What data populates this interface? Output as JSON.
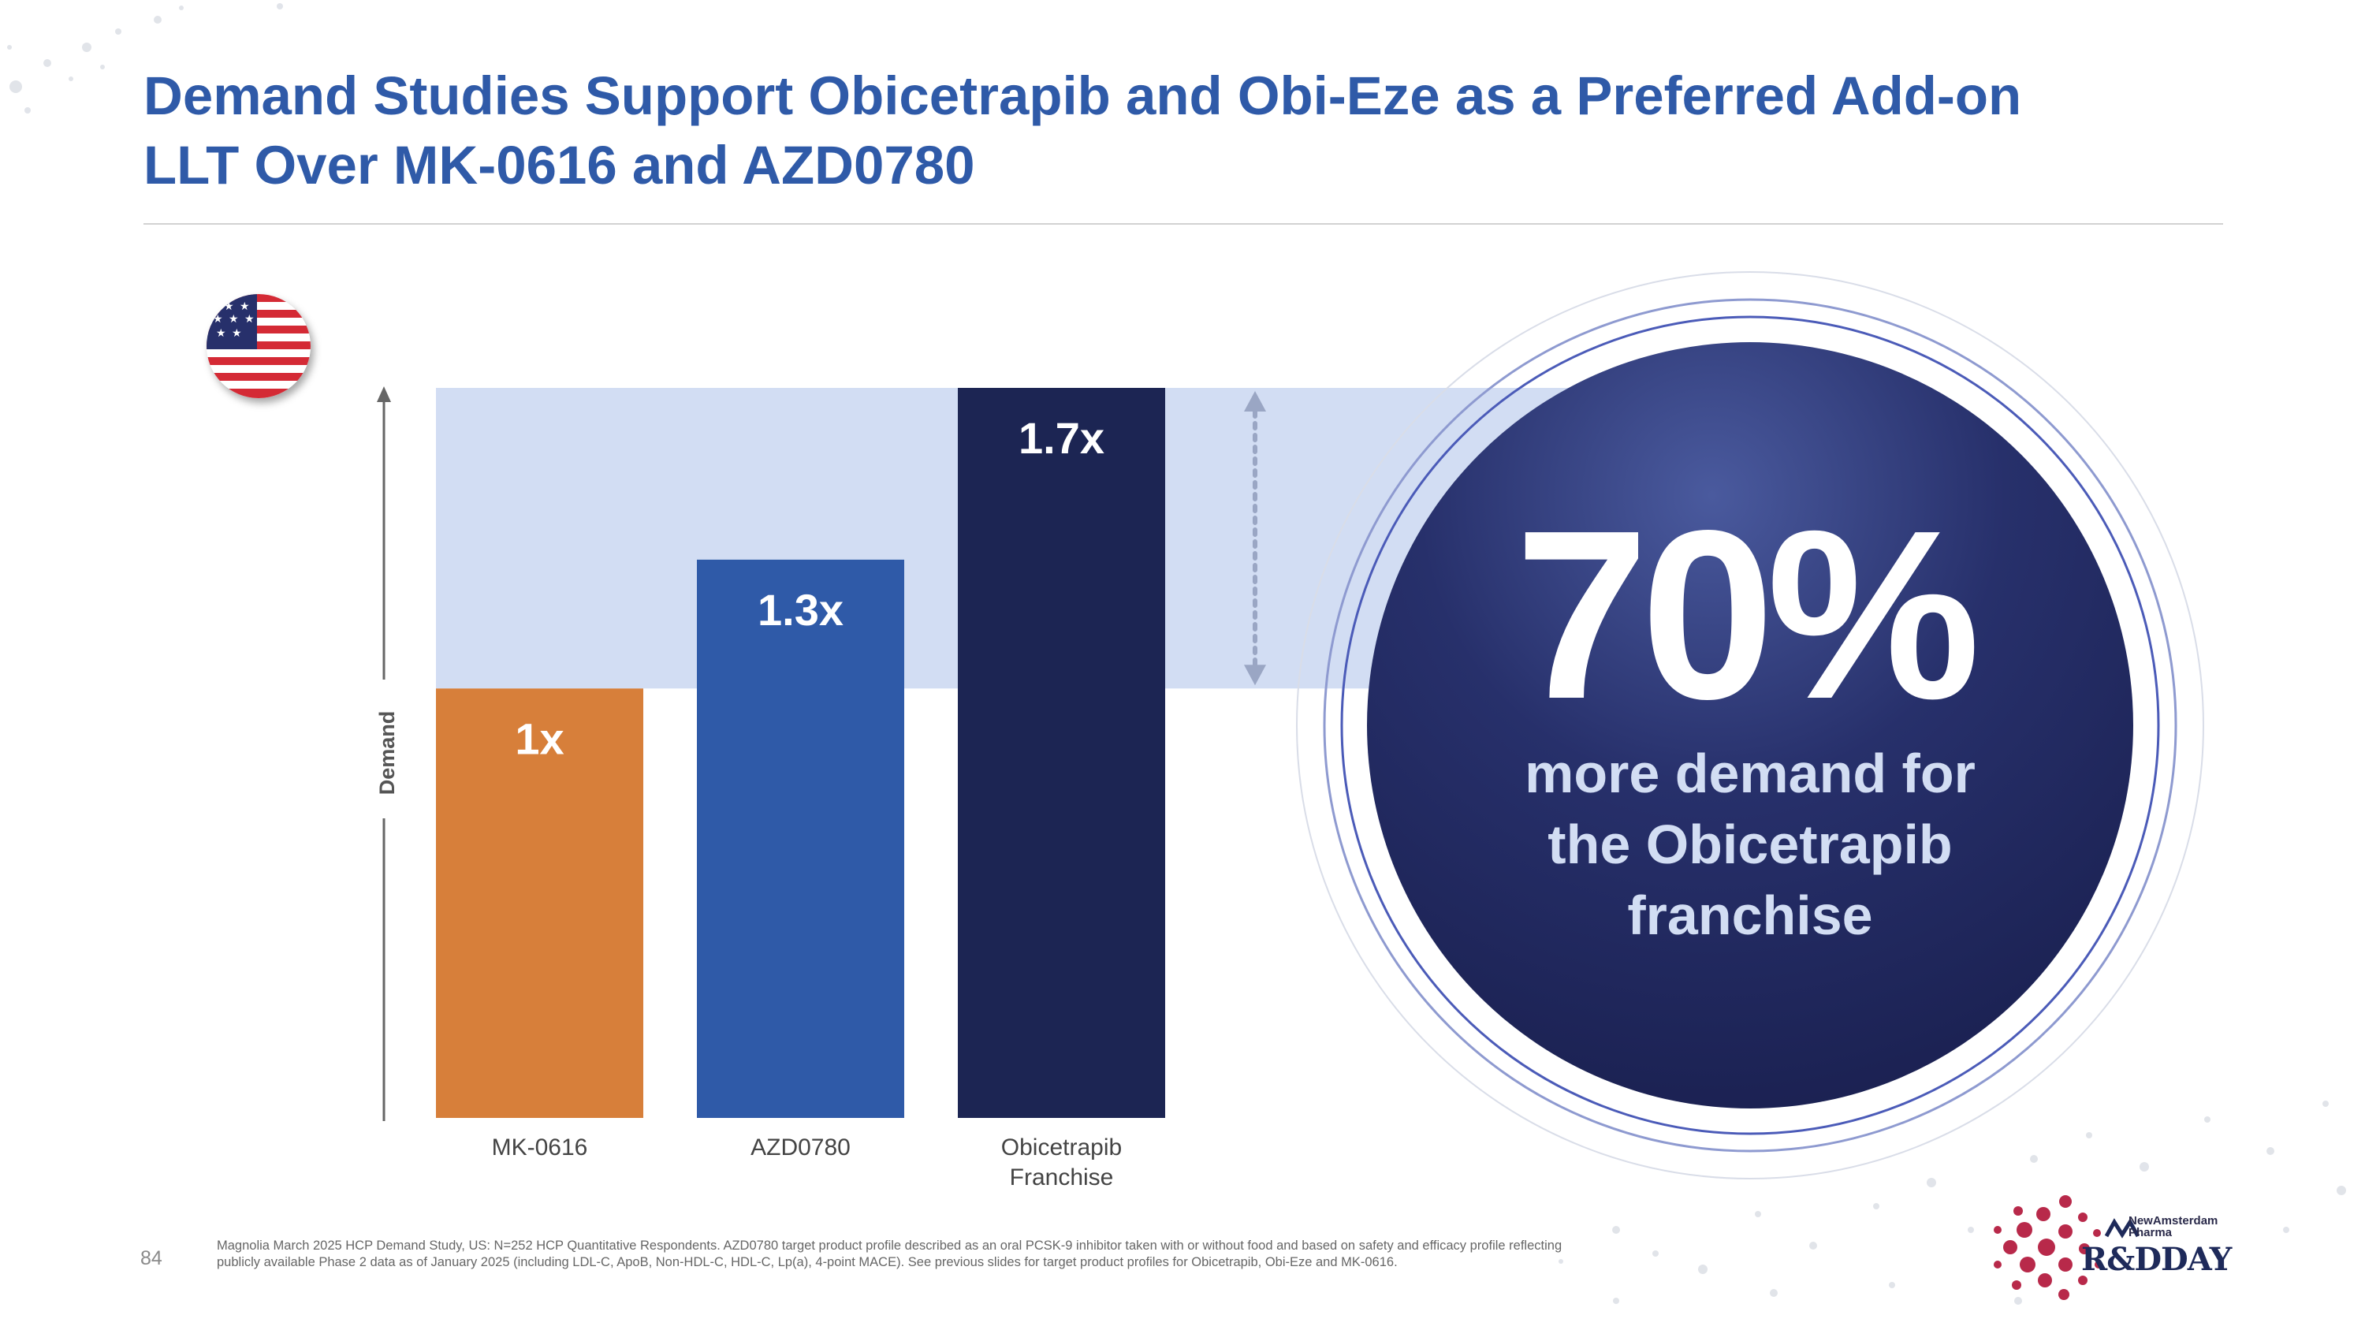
{
  "title": {
    "line1": "Demand Studies Support Obicetrapib and Obi-Eze as a Preferred Add-on",
    "line2": "LLT Over MK-0616 and AZD0780"
  },
  "flag": {
    "country": "US",
    "icon": "us-flag-icon"
  },
  "chart_data": {
    "type": "bar",
    "title": "",
    "xlabel": "",
    "ylabel": "Demand",
    "categories": [
      "MK-0616",
      "AZD0780",
      "Obicetrapib Franchise"
    ],
    "category_lines": [
      [
        "MK-0616"
      ],
      [
        "AZD0780"
      ],
      [
        "Obicetrapib",
        "Franchise"
      ]
    ],
    "values": [
      1.0,
      1.3,
      1.7
    ],
    "labels": [
      "1x",
      "1.3x",
      "1.7x"
    ],
    "colors": [
      "#d77f3a",
      "#2f5aa8",
      "#1c2553"
    ],
    "ylim": [
      0,
      1.7
    ],
    "grid": false,
    "legend": "none",
    "highlight_band": [
      1.0,
      1.7
    ]
  },
  "callout": {
    "percent": "70%",
    "line1": "more demand for",
    "line2": "the Obicetrapib",
    "line3": "franchise"
  },
  "footnote": {
    "line1": "Magnolia March 2025 HCP Demand Study, US: N=252 HCP Quantitative Respondents.  AZD0780 target product profile described as an oral PCSK-9 inhibitor taken with or without food and based on safety and efficacy profile reflecting",
    "line2": "publicly available Phase 2 data as of January 2025 (including LDL-C, ApoB, Non-HDL-C, HDL-C, Lp(a), 4-point MACE).  See previous slides for target product profiles for Obicetrapib, Obi-Eze and MK-0616."
  },
  "page_number": "84",
  "logo": {
    "brand_line1": "NewAmsterdam",
    "brand_line2": "Pharma",
    "event": "R&DDAY"
  }
}
